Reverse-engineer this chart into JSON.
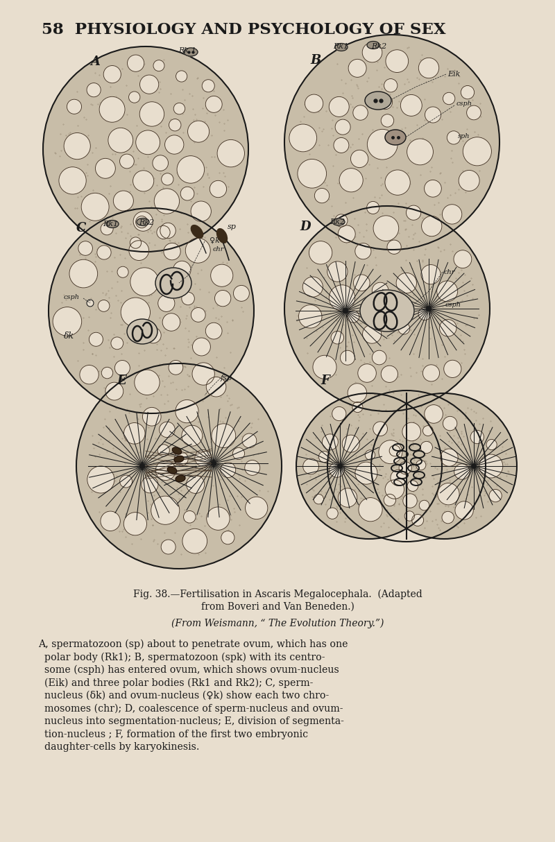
{
  "bg_color": "#e8dece",
  "dark": "#1a1a1a",
  "cell_fill": "#c8bda8",
  "vac_fill": "#e8dece",
  "vac_edge": "#4a3a2a",
  "stipple_color": "#5a4a35",
  "fig_width": 8.0,
  "fig_height": 12.14,
  "header": "58  PHYSIOLOGY AND PSYCHOLOGY OF SEX",
  "cap1": "Fig. 38.—Fertilisation in Ascaris Megalocephala.  (Adapted",
  "cap2": "from Boveri and Van Beneden.)",
  "cap3": "(From Weismann, “ The Evolution Theory.”)",
  "body1": "A, spermatozoon (sp) about to penetrate ovum, which has one",
  "body2": "  polar body (Rk1); B, spermatozoon (spk) with its centro-",
  "body3": "  some (csph) has entered ovum, which shows ovum-nucleus",
  "body4": "  (Eik) and three polar bodies (Rk1 and Rk2); C, sperm-",
  "body5": "  nucleus (δk) and ovum-nucleus (♀k) show each two chro-",
  "body6": "  mosomes (chr); D, coalescence of sperm-nucleus and ovum-",
  "body7": "  nucleus into segmentation-nucleus; E, division of segmenta-",
  "body8": "  tion-nucleus ; F, formation of the first two embryonic",
  "body9": "  daughter-cells by karyokinesis."
}
